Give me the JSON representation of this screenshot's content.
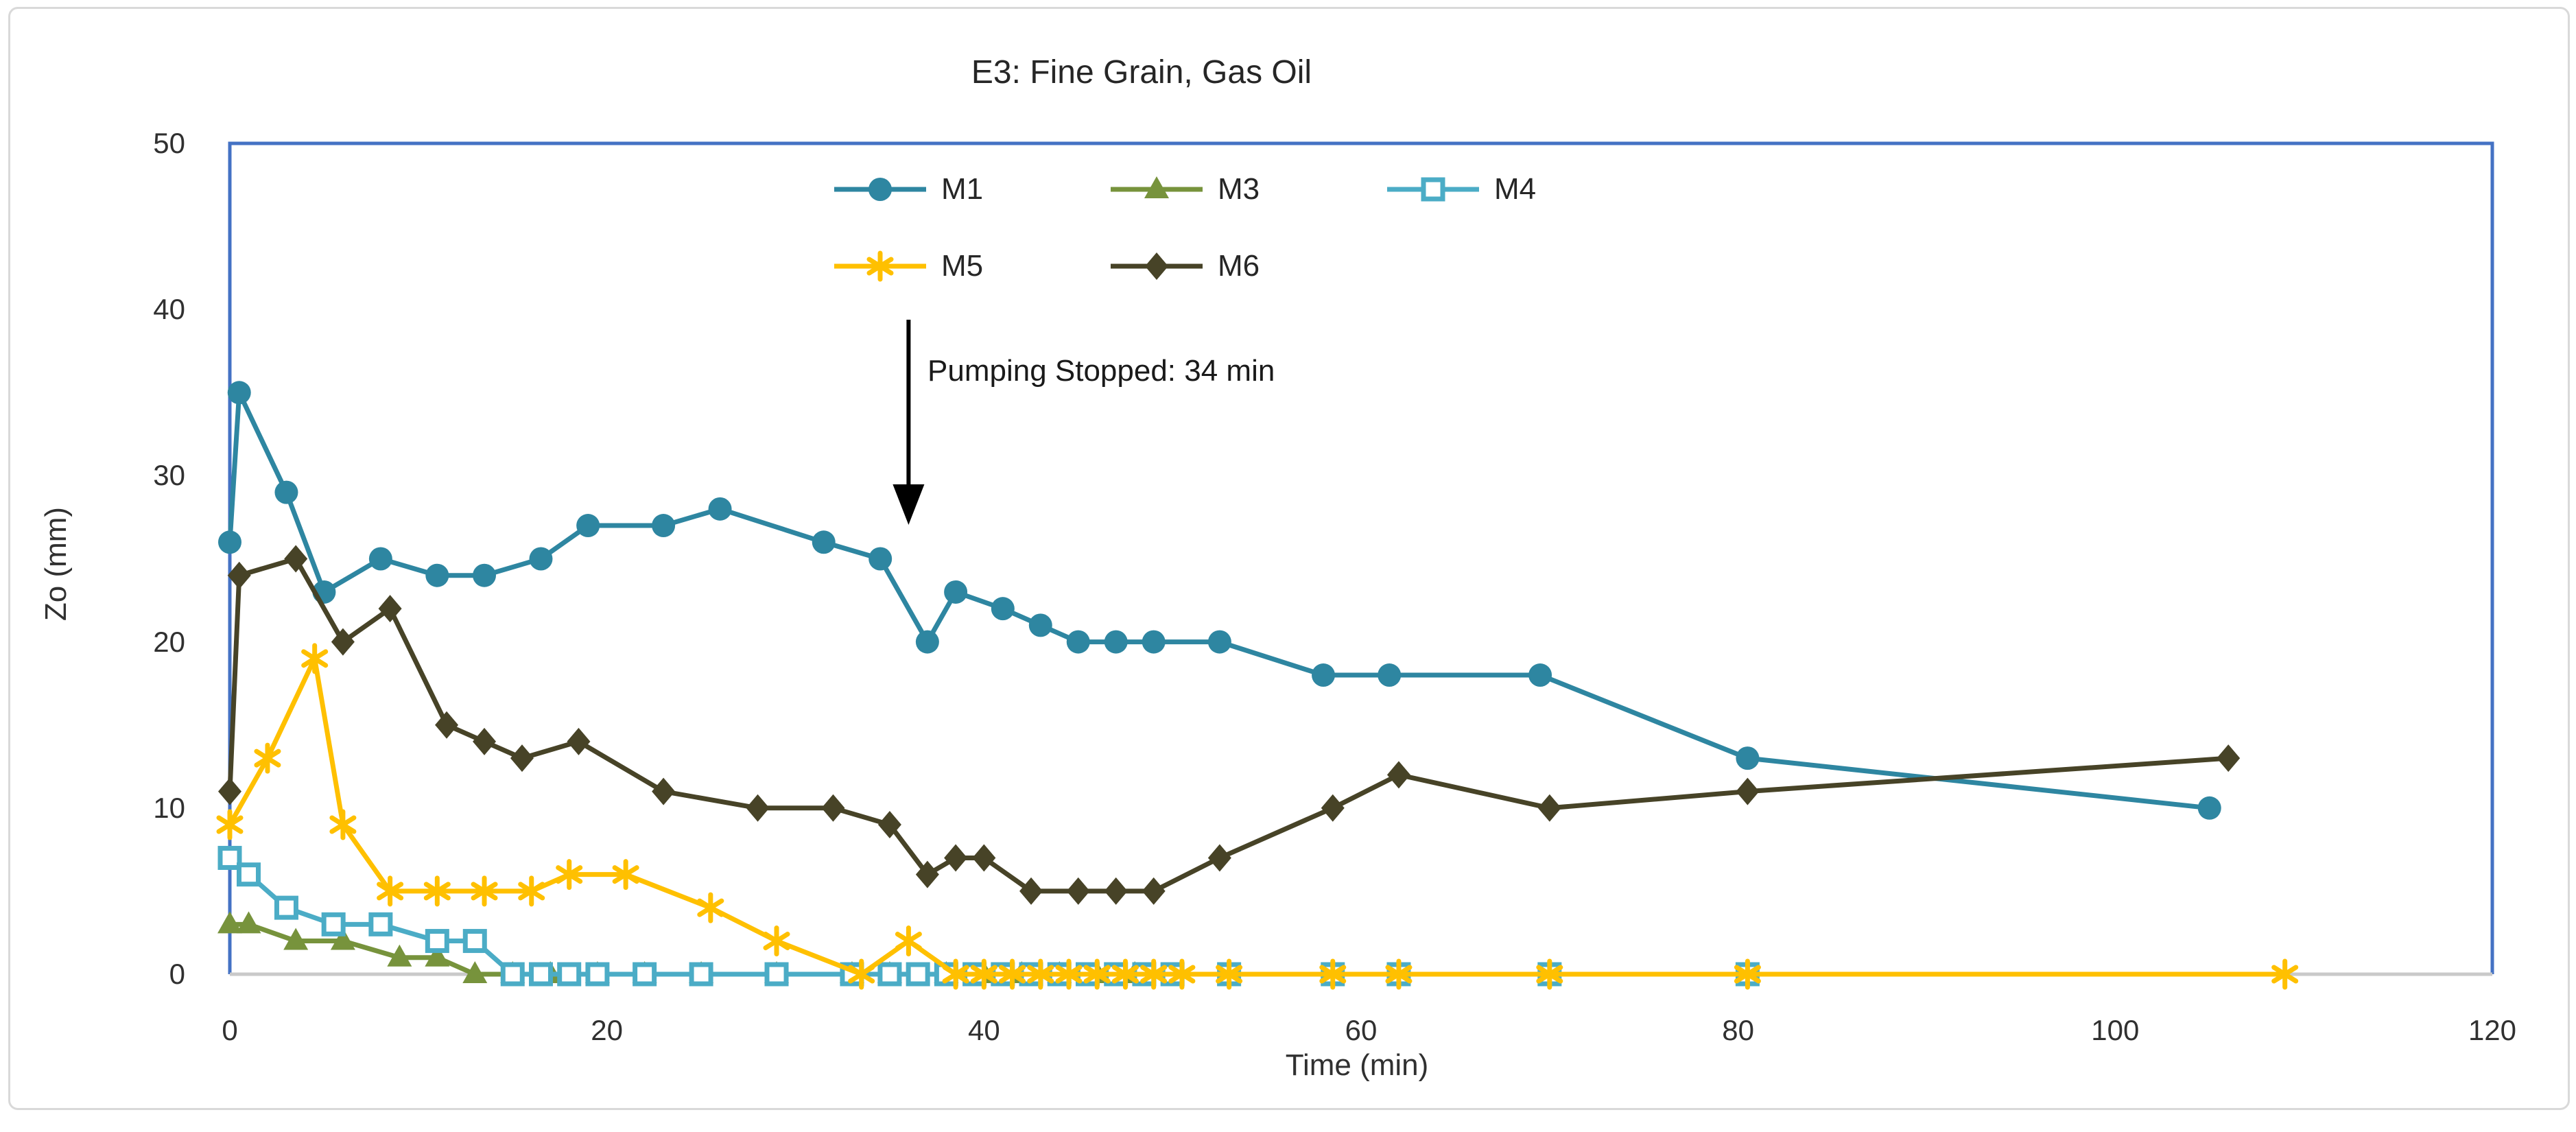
{
  "title": "E3: Fine Grain, Gas Oil",
  "annotation": {
    "text": "Pumping Stopped: 34 min",
    "arrow_time_min": 36
  },
  "axes": {
    "x_label": "Time (min)",
    "y_label": "Zo (mm)",
    "x_ticks": [
      0,
      20,
      40,
      60,
      80,
      100,
      120
    ],
    "y_ticks": [
      0,
      10,
      20,
      30,
      40,
      50
    ]
  },
  "legend": {
    "rows": [
      [
        "M1",
        "M3",
        "M4"
      ],
      [
        "M5",
        "M6"
      ]
    ]
  },
  "colors": {
    "m1": "#2E86A1",
    "m3": "#77933C",
    "m4": "#4BACC6",
    "m5": "#FFC000",
    "m6": "#474327",
    "plot_border": "#4472C4",
    "axis_line": "#C9C9C9",
    "arrow": "#000000"
  },
  "chart_data": {
    "type": "line",
    "title": "E3: Fine Grain, Gas Oil",
    "xlabel": "Time (min)",
    "ylabel": "Zo (mm)",
    "xlim": [
      0,
      120
    ],
    "ylim": [
      0,
      50
    ],
    "grid": false,
    "legend_position": "top-inside",
    "annotation": "Pumping Stopped: 34 min (vertical down arrow at ~36 min)",
    "series": [
      {
        "name": "M1",
        "marker": "circle",
        "color_key": "m1",
        "points": [
          [
            0,
            26
          ],
          [
            0.5,
            35
          ],
          [
            3,
            29
          ],
          [
            5,
            23
          ],
          [
            8,
            25
          ],
          [
            11,
            24
          ],
          [
            13.5,
            24
          ],
          [
            16.5,
            25
          ],
          [
            19,
            27
          ],
          [
            23,
            27
          ],
          [
            26,
            28
          ],
          [
            31.5,
            26
          ],
          [
            34.5,
            25
          ],
          [
            37,
            20
          ],
          [
            38.5,
            23
          ],
          [
            41,
            22
          ],
          [
            43,
            21
          ],
          [
            45,
            20
          ],
          [
            47,
            20
          ],
          [
            49,
            20
          ],
          [
            52.5,
            20
          ],
          [
            58,
            18
          ],
          [
            61.5,
            18
          ],
          [
            69.5,
            18
          ],
          [
            80.5,
            13
          ],
          [
            105,
            10
          ]
        ]
      },
      {
        "name": "M3",
        "marker": "triangle",
        "color_key": "m3",
        "points": [
          [
            0,
            3
          ],
          [
            1,
            3
          ],
          [
            3.5,
            2
          ],
          [
            6,
            2
          ],
          [
            9,
            1
          ],
          [
            11,
            1
          ],
          [
            13,
            0
          ],
          [
            15,
            0
          ],
          [
            17,
            0
          ],
          [
            19.5,
            0
          ],
          [
            22,
            0
          ],
          [
            25,
            0
          ],
          [
            29,
            0
          ],
          [
            33,
            0
          ],
          [
            35,
            0
          ],
          [
            38,
            0
          ],
          [
            40,
            0
          ],
          [
            42,
            0
          ],
          [
            44,
            0
          ],
          [
            46,
            0
          ],
          [
            48,
            0
          ],
          [
            53,
            0
          ],
          [
            58.5,
            0
          ],
          [
            62,
            0
          ],
          [
            70,
            0
          ],
          [
            80.5,
            0
          ]
        ]
      },
      {
        "name": "M4",
        "marker": "square-open",
        "color_key": "m4",
        "points": [
          [
            0,
            7
          ],
          [
            1,
            6
          ],
          [
            3,
            4
          ],
          [
            5.5,
            3
          ],
          [
            8,
            3
          ],
          [
            11,
            2
          ],
          [
            13,
            2
          ],
          [
            15,
            0
          ],
          [
            16.5,
            0
          ],
          [
            18,
            0
          ],
          [
            19.5,
            0
          ],
          [
            22,
            0
          ],
          [
            25,
            0
          ],
          [
            29,
            0
          ],
          [
            33,
            0
          ],
          [
            35,
            0
          ],
          [
            36.5,
            0
          ],
          [
            38,
            0
          ],
          [
            39.5,
            0
          ],
          [
            41,
            0
          ],
          [
            42.5,
            0
          ],
          [
            44,
            0
          ],
          [
            45.5,
            0
          ],
          [
            47,
            0
          ],
          [
            48.5,
            0
          ],
          [
            50,
            0
          ],
          [
            53,
            0
          ],
          [
            58.5,
            0
          ],
          [
            62,
            0
          ],
          [
            70,
            0
          ],
          [
            80.5,
            0
          ]
        ]
      },
      {
        "name": "M5",
        "marker": "asterisk",
        "color_key": "m5",
        "points": [
          [
            0,
            9
          ],
          [
            2,
            13
          ],
          [
            4.5,
            19
          ],
          [
            6,
            9
          ],
          [
            8.5,
            5
          ],
          [
            11,
            5
          ],
          [
            13.5,
            5
          ],
          [
            16,
            5
          ],
          [
            18,
            6
          ],
          [
            21,
            6
          ],
          [
            25.5,
            4
          ],
          [
            29,
            2
          ],
          [
            33.5,
            0
          ],
          [
            36,
            2
          ],
          [
            38.5,
            0
          ],
          [
            40,
            0
          ],
          [
            41.5,
            0
          ],
          [
            43,
            0
          ],
          [
            44.5,
            0
          ],
          [
            46,
            0
          ],
          [
            47.5,
            0
          ],
          [
            49,
            0
          ],
          [
            50.5,
            0
          ],
          [
            53,
            0
          ],
          [
            58.5,
            0
          ],
          [
            62,
            0
          ],
          [
            70,
            0
          ],
          [
            80.5,
            0
          ],
          [
            109,
            0
          ]
        ]
      },
      {
        "name": "M6",
        "marker": "diamond",
        "color_key": "m6",
        "points": [
          [
            0,
            11
          ],
          [
            0.5,
            24
          ],
          [
            3.5,
            25
          ],
          [
            6,
            20
          ],
          [
            8.5,
            22
          ],
          [
            11.5,
            15
          ],
          [
            13.5,
            14
          ],
          [
            15.5,
            13
          ],
          [
            18.5,
            14
          ],
          [
            23,
            11
          ],
          [
            28,
            10
          ],
          [
            32,
            10
          ],
          [
            35,
            9
          ],
          [
            37,
            6
          ],
          [
            38.5,
            7
          ],
          [
            40,
            7
          ],
          [
            42.5,
            5
          ],
          [
            45,
            5
          ],
          [
            47,
            5
          ],
          [
            49,
            5
          ],
          [
            52.5,
            7
          ],
          [
            58.5,
            10
          ],
          [
            62,
            12
          ],
          [
            70,
            10
          ],
          [
            80.5,
            11
          ],
          [
            106,
            13
          ]
        ]
      }
    ]
  }
}
